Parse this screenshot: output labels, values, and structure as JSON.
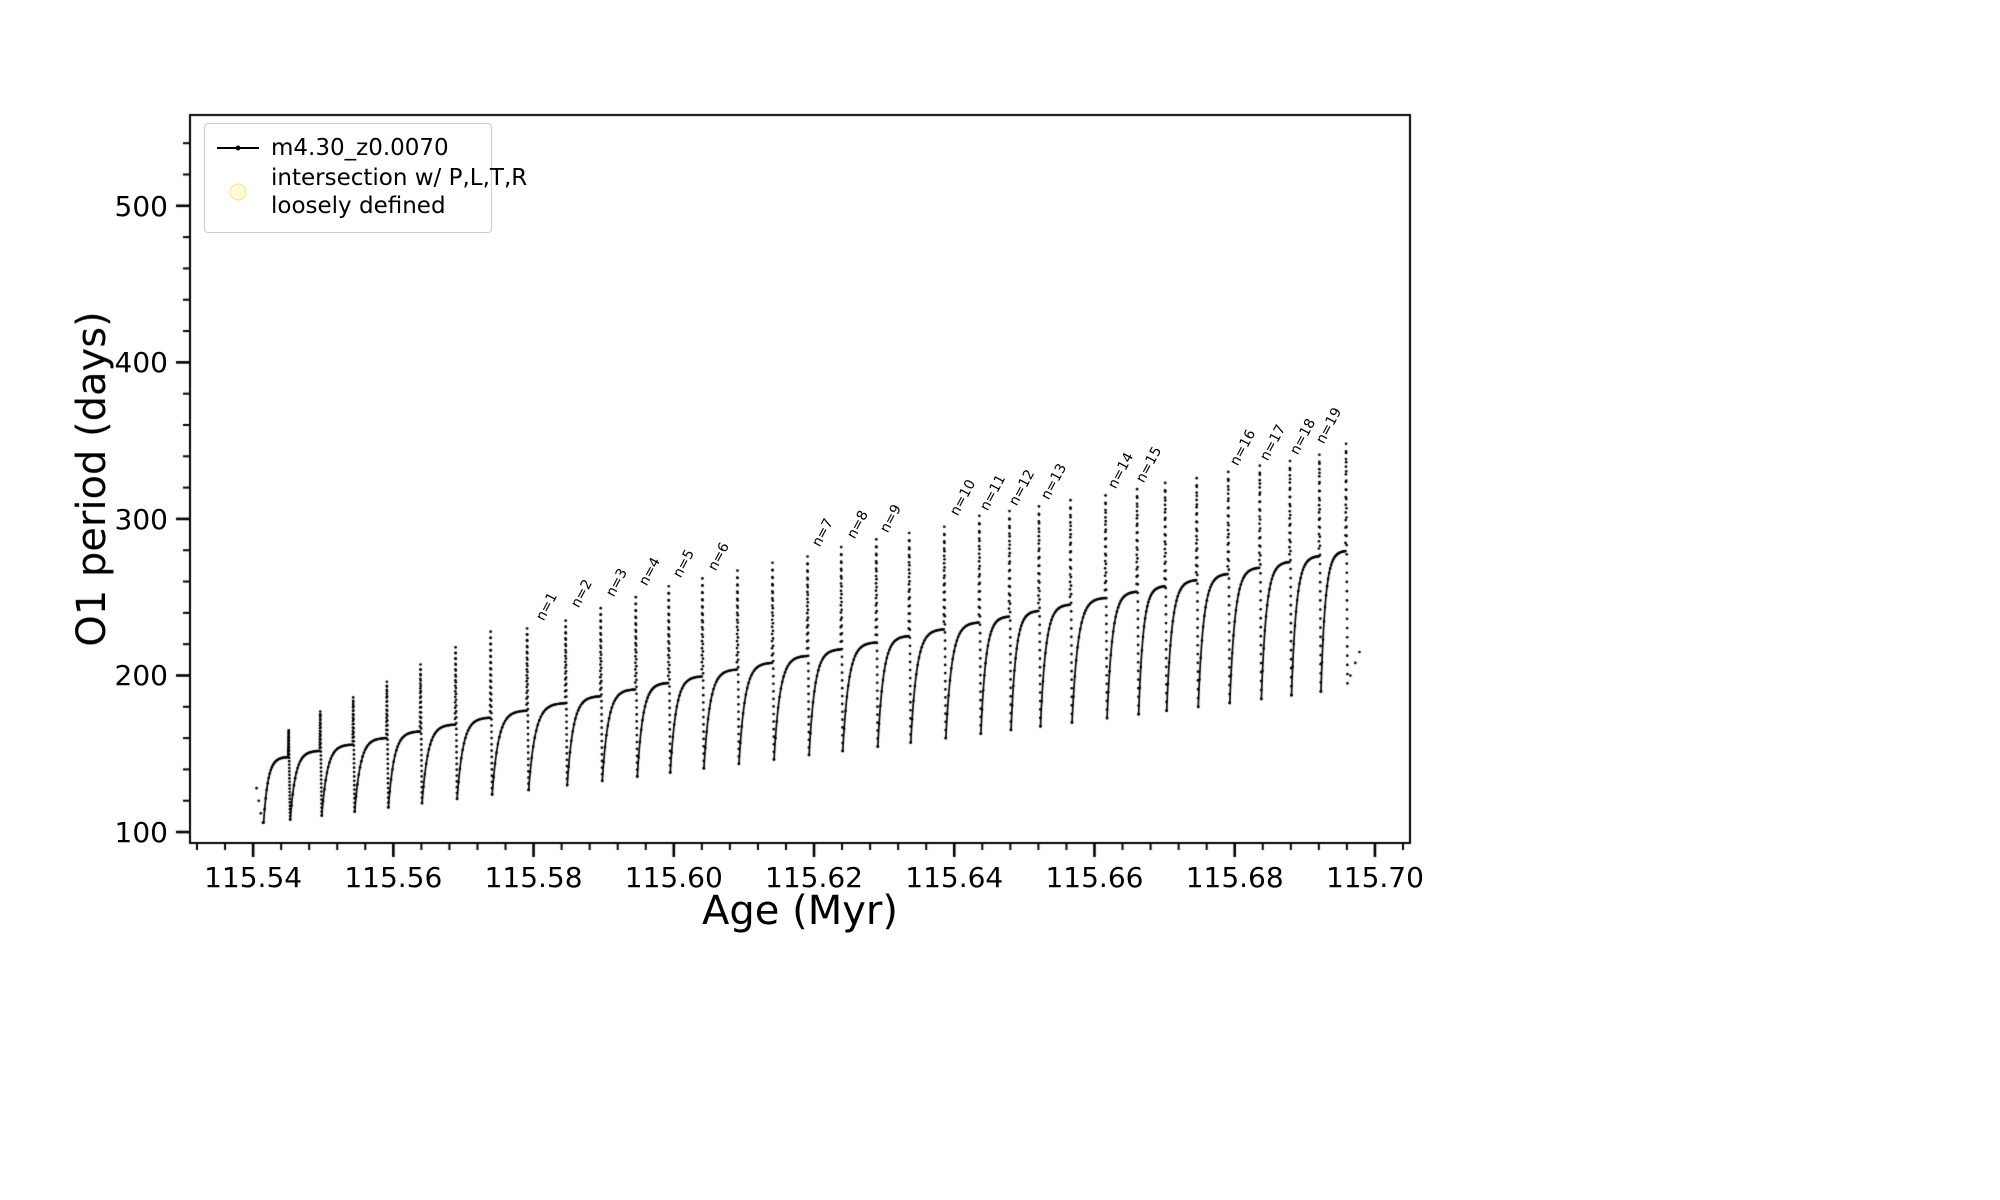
{
  "figure": {
    "background": "#ffffff",
    "red_marker_color": "#ed1c24"
  },
  "legend": {
    "entries": [
      {
        "marker": "line-dot",
        "color": "#000000",
        "label": "m4.30_z0.0070"
      },
      {
        "marker": "circle",
        "color": "#fffbd0",
        "edge_color": "#eaea90",
        "label_line1": "intersection w/ P,L,T,R",
        "label_line2": "loosely defined"
      }
    ]
  },
  "chart_data": {
    "type": "line",
    "title": "",
    "xlabel": "Age (Myr)",
    "ylabel": "O1 period (days)",
    "series_name": "m4.30_z0.0070",
    "line_color": "#000000",
    "grid": false,
    "legend_position": "upper left",
    "xlim": [
      115.531,
      115.705
    ],
    "ylim": [
      93,
      558
    ],
    "x_major_ticks": [
      115.54,
      115.56,
      115.58,
      115.6,
      115.62,
      115.64,
      115.66,
      115.68,
      115.7
    ],
    "x_tick_labels": [
      "115.54",
      "115.56",
      "115.58",
      "115.60",
      "115.62",
      "115.64",
      "115.66",
      "115.68",
      "115.70"
    ],
    "x_minor_step": 0.004,
    "y_major_ticks": [
      100,
      200,
      300,
      400,
      500
    ],
    "y_tick_labels": [
      "100",
      "200",
      "300",
      "400",
      "500"
    ],
    "y_minor_step": 20,
    "annotation_rotation_deg": -62,
    "start_segment": {
      "x": [
        115.5405,
        115.5408,
        115.5411,
        115.5414
      ],
      "y": [
        128,
        120,
        112,
        106
      ]
    },
    "cycles": [
      {
        "start": 115.5415,
        "min": 106.0,
        "spike_x": 115.545,
        "env": 148.0,
        "peak": 165,
        "label": null
      },
      {
        "start": 115.5453,
        "min": 108.0,
        "spike_x": 115.5495,
        "env": 152.0,
        "peak": 177,
        "label": null
      },
      {
        "start": 115.5498,
        "min": 110.5,
        "spike_x": 115.5542,
        "env": 156.0,
        "peak": 186,
        "label": null
      },
      {
        "start": 115.5545,
        "min": 113.1,
        "spike_x": 115.559,
        "env": 160.2,
        "peak": 196,
        "label": null
      },
      {
        "start": 115.5593,
        "min": 115.8,
        "spike_x": 115.5638,
        "env": 164.4,
        "peak": 207,
        "label": null
      },
      {
        "start": 115.5641,
        "min": 118.5,
        "spike_x": 115.5688,
        "env": 168.8,
        "peak": 218,
        "label": null
      },
      {
        "start": 115.5691,
        "min": 121.2,
        "spike_x": 115.5738,
        "env": 173.2,
        "peak": 228,
        "label": null
      },
      {
        "start": 115.5741,
        "min": 124.0,
        "spike_x": 115.579,
        "env": 177.7,
        "peak": 230,
        "label": null
      },
      {
        "start": 115.5793,
        "min": 126.9,
        "spike_x": 115.5845,
        "env": 182.5,
        "peak": 235,
        "label": "n=1"
      },
      {
        "start": 115.5848,
        "min": 130.0,
        "spike_x": 115.5895,
        "env": 186.9,
        "peak": 243,
        "label": "n=2"
      },
      {
        "start": 115.5898,
        "min": 132.7,
        "spike_x": 115.5945,
        "env": 191.3,
        "peak": 250,
        "label": "n=3"
      },
      {
        "start": 115.5948,
        "min": 135.5,
        "spike_x": 115.5992,
        "env": 195.4,
        "peak": 257,
        "label": "n=4"
      },
      {
        "start": 115.5995,
        "min": 138.1,
        "spike_x": 115.604,
        "env": 199.6,
        "peak": 262,
        "label": "n=5"
      },
      {
        "start": 115.6043,
        "min": 140.8,
        "spike_x": 115.609,
        "env": 204.0,
        "peak": 267,
        "label": "n=6"
      },
      {
        "start": 115.6093,
        "min": 143.6,
        "spike_x": 115.614,
        "env": 208.3,
        "peak": 272,
        "label": null
      },
      {
        "start": 115.6143,
        "min": 146.4,
        "spike_x": 115.619,
        "env": 212.7,
        "peak": 276,
        "label": null
      },
      {
        "start": 115.6193,
        "min": 149.2,
        "spike_x": 115.6238,
        "env": 216.9,
        "peak": 282,
        "label": "n=7"
      },
      {
        "start": 115.6241,
        "min": 151.8,
        "spike_x": 115.6288,
        "env": 221.3,
        "peak": 287,
        "label": "n=8"
      },
      {
        "start": 115.6291,
        "min": 154.6,
        "spike_x": 115.6335,
        "env": 225.4,
        "peak": 291,
        "label": "n=9"
      },
      {
        "start": 115.6338,
        "min": 157.2,
        "spike_x": 115.6385,
        "env": 229.7,
        "peak": 295,
        "label": null
      },
      {
        "start": 115.6388,
        "min": 160.0,
        "spike_x": 115.6435,
        "env": 234.1,
        "peak": 302,
        "label": "n=10"
      },
      {
        "start": 115.6438,
        "min": 162.8,
        "spike_x": 115.6478,
        "env": 237.9,
        "peak": 305,
        "label": "n=11"
      },
      {
        "start": 115.6481,
        "min": 165.2,
        "spike_x": 115.652,
        "env": 241.5,
        "peak": 308,
        "label": "n=12"
      },
      {
        "start": 115.6523,
        "min": 167.5,
        "spike_x": 115.6565,
        "env": 245.5,
        "peak": 312,
        "label": "n=13"
      },
      {
        "start": 115.6568,
        "min": 170.0,
        "spike_x": 115.6615,
        "env": 249.8,
        "peak": 315,
        "label": null
      },
      {
        "start": 115.6618,
        "min": 172.8,
        "spike_x": 115.666,
        "env": 253.8,
        "peak": 319,
        "label": "n=14"
      },
      {
        "start": 115.6663,
        "min": 175.3,
        "spike_x": 115.67,
        "env": 257.3,
        "peak": 323,
        "label": "n=15"
      },
      {
        "start": 115.6703,
        "min": 177.5,
        "spike_x": 115.6745,
        "env": 261.2,
        "peak": 326,
        "label": null
      },
      {
        "start": 115.6748,
        "min": 180.0,
        "spike_x": 115.679,
        "env": 265.1,
        "peak": 330,
        "label": null
      },
      {
        "start": 115.6793,
        "min": 182.5,
        "spike_x": 115.6835,
        "env": 269.1,
        "peak": 334,
        "label": "n=16"
      },
      {
        "start": 115.6838,
        "min": 185.0,
        "spike_x": 115.6878,
        "env": 272.8,
        "peak": 337,
        "label": "n=17"
      },
      {
        "start": 115.6881,
        "min": 187.4,
        "spike_x": 115.692,
        "env": 276.5,
        "peak": 341,
        "label": "n=18"
      },
      {
        "start": 115.6923,
        "min": 189.8,
        "spike_x": 115.6958,
        "env": 279.8,
        "peak": 348,
        "label": "n=19"
      }
    ],
    "end_drop_y": 195,
    "end_tail": {
      "x": [
        115.6965,
        115.6972,
        115.6978
      ],
      "y": [
        200,
        208,
        215
      ]
    }
  }
}
